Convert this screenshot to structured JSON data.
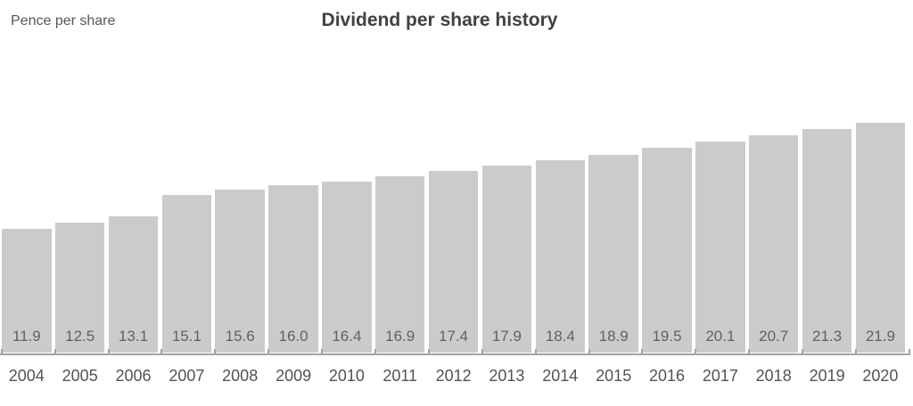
{
  "chart_data": {
    "type": "bar",
    "title": "Dividend per share history",
    "ylabel": "Pence per share",
    "xlabel": "",
    "categories": [
      "2004",
      "2005",
      "2006",
      "2007",
      "2008",
      "2009",
      "2010",
      "2011",
      "2012",
      "2013",
      "2014",
      "2015",
      "2016",
      "2017",
      "2018",
      "2019",
      "2020"
    ],
    "values": [
      11.9,
      12.5,
      13.1,
      15.1,
      15.6,
      16.0,
      16.4,
      16.9,
      17.4,
      17.9,
      18.4,
      18.9,
      19.5,
      20.1,
      20.7,
      21.3,
      21.9
    ],
    "value_label_position": "inside-bottom",
    "ylim": [
      0,
      22
    ],
    "grid": false,
    "legend_position": "none",
    "bar_color": "#cbcbcb",
    "axis_color": "#a2a2a2",
    "value_label_color": "#616161",
    "category_label_color": "#525356",
    "title_color": "#414042",
    "ylabel_color": "#55565a"
  }
}
